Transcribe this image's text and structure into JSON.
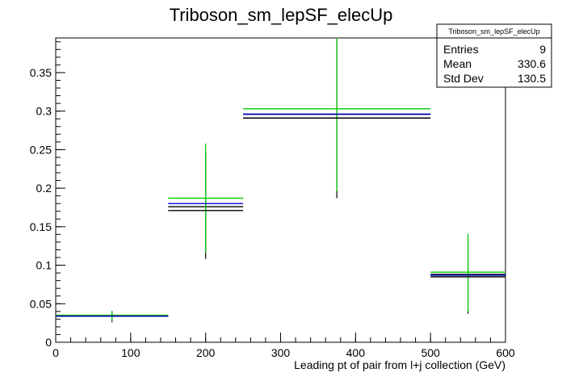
{
  "chart_data": {
    "type": "histogram",
    "title": "Triboson_sm_lepSF_elecUp",
    "xlabel": "Leading pt of pair from l+j collection (GeV)",
    "ylabel": "",
    "xlim": [
      0,
      600
    ],
    "ylim": [
      0,
      0.395
    ],
    "x_ticks": [
      0,
      100,
      200,
      300,
      400,
      500,
      600
    ],
    "y_ticks": [
      0,
      0.05,
      0.1,
      0.15,
      0.2,
      0.25,
      0.3,
      0.35
    ],
    "y_tick_labels": [
      "0",
      "0.05",
      "0.1",
      "0.15",
      "0.2",
      "0.25",
      "0.3",
      "0.35"
    ],
    "grid": false,
    "bins": [
      {
        "low": 0,
        "high": 150,
        "center": 75
      },
      {
        "low": 150,
        "high": 250,
        "center": 200
      },
      {
        "low": 250,
        "high": 500,
        "center": 375
      },
      {
        "low": 500,
        "high": 600,
        "center": 550
      }
    ],
    "series": [
      {
        "color": "#000000",
        "values": [
          0.034,
          0.176,
          0.296,
          0.088
        ],
        "err_low": [
          0.026,
          0.108,
          0.187,
          0.037
        ],
        "err_high": [
          0.04,
          0.247,
          0.394,
          0.136
        ]
      },
      {
        "color": "#00cc00",
        "values": [
          0.035,
          0.187,
          0.303,
          0.091
        ],
        "err_low": [
          0.028,
          0.116,
          0.196,
          0.04
        ],
        "err_high": [
          0.041,
          0.258,
          0.394,
          0.141
        ]
      },
      {
        "color": "#000000",
        "values": [
          0.034,
          0.171,
          0.291,
          0.085
        ],
        "err_low": [],
        "err_high": []
      },
      {
        "color": "#0000cc",
        "values": [
          0.034,
          0.18,
          0.296,
          0.087
        ],
        "err_low": [],
        "err_high": []
      }
    ],
    "stats_box": {
      "title": "Triboson_sm_lepSF_elecUp",
      "rows": [
        {
          "label": "Entries",
          "value": "9"
        },
        {
          "label": "Mean",
          "value": "330.6"
        },
        {
          "label": "Std Dev",
          "value": "130.5"
        }
      ]
    }
  }
}
